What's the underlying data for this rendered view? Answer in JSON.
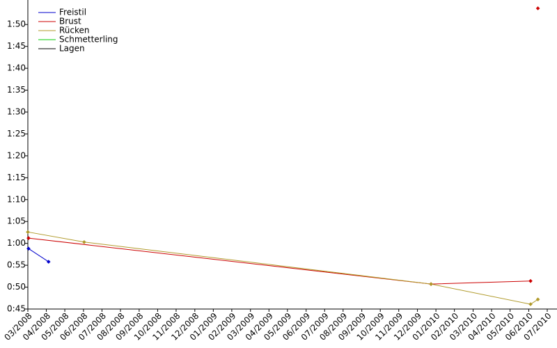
{
  "chart_data": {
    "type": "line",
    "x_label_format": "date",
    "series": [
      {
        "name": "Freistil",
        "color": "#0000cc",
        "x": [
          2008.17,
          2008.26
        ],
        "values": [
          58.8,
          55.8
        ]
      },
      {
        "name": "Brust",
        "color": "#cc0000",
        "x": [
          2008.17,
          2009.978,
          2010.425,
          null,
          2010.458
        ],
        "values": [
          61.2,
          50.7,
          51.4,
          null,
          113.7
        ]
      },
      {
        "name": "Rücken",
        "color": "#b09a2a",
        "x": [
          2008.167,
          2008.42,
          2009.978,
          2010.425,
          2010.458
        ],
        "values": [
          62.6,
          60.3,
          50.7,
          46.1,
          47.2
        ]
      },
      {
        "name": "Schmetterling",
        "color": "#00cc00",
        "x": [],
        "values": []
      },
      {
        "name": "Lagen",
        "color": "#000000",
        "x": [],
        "values": []
      }
    ],
    "xlim": [
      2008.167,
      2010.5
    ],
    "xticks": [
      {
        "value": 2008.167,
        "label": "03/2008"
      },
      {
        "value": 2008.25,
        "label": "04/2008"
      },
      {
        "value": 2008.333,
        "label": "05/2008"
      },
      {
        "value": 2008.417,
        "label": "06/2008"
      },
      {
        "value": 2008.5,
        "label": "07/2008"
      },
      {
        "value": 2008.583,
        "label": "08/2008"
      },
      {
        "value": 2008.667,
        "label": "09/2008"
      },
      {
        "value": 2008.75,
        "label": "10/2008"
      },
      {
        "value": 2008.833,
        "label": "11/2008"
      },
      {
        "value": 2008.917,
        "label": "12/2008"
      },
      {
        "value": 2009.0,
        "label": "01/2009"
      },
      {
        "value": 2009.083,
        "label": "02/2009"
      },
      {
        "value": 2009.167,
        "label": "03/2009"
      },
      {
        "value": 2009.25,
        "label": "04/2009"
      },
      {
        "value": 2009.333,
        "label": "05/2009"
      },
      {
        "value": 2009.417,
        "label": "06/2009"
      },
      {
        "value": 2009.5,
        "label": "07/2009"
      },
      {
        "value": 2009.583,
        "label": "08/2009"
      },
      {
        "value": 2009.667,
        "label": "09/2009"
      },
      {
        "value": 2009.75,
        "label": "10/2009"
      },
      {
        "value": 2009.833,
        "label": "11/2009"
      },
      {
        "value": 2009.917,
        "label": "12/2009"
      },
      {
        "value": 2010.0,
        "label": "01/2010"
      },
      {
        "value": 2010.083,
        "label": "02/2010"
      },
      {
        "value": 2010.167,
        "label": "03/2010"
      },
      {
        "value": 2010.25,
        "label": "04/2010"
      },
      {
        "value": 2010.333,
        "label": "05/2010"
      },
      {
        "value": 2010.417,
        "label": "06/2010"
      },
      {
        "value": 2010.5,
        "label": "07/2010"
      }
    ],
    "ylim": [
      45,
      115.6
    ],
    "yticks": [
      {
        "value": 45,
        "label": "0:45"
      },
      {
        "value": 50,
        "label": "0:50"
      },
      {
        "value": 55,
        "label": "0:55"
      },
      {
        "value": 60,
        "label": "1:00"
      },
      {
        "value": 65,
        "label": "1:05"
      },
      {
        "value": 70,
        "label": "1:10"
      },
      {
        "value": 75,
        "label": "1:15"
      },
      {
        "value": 80,
        "label": "1:20"
      },
      {
        "value": 85,
        "label": "1:25"
      },
      {
        "value": 90,
        "label": "1:30"
      },
      {
        "value": 95,
        "label": "1:35"
      },
      {
        "value": 100,
        "label": "1:40"
      },
      {
        "value": 105,
        "label": "1:45"
      },
      {
        "value": 110,
        "label": "1:50"
      }
    ],
    "legend": "upper-left"
  }
}
